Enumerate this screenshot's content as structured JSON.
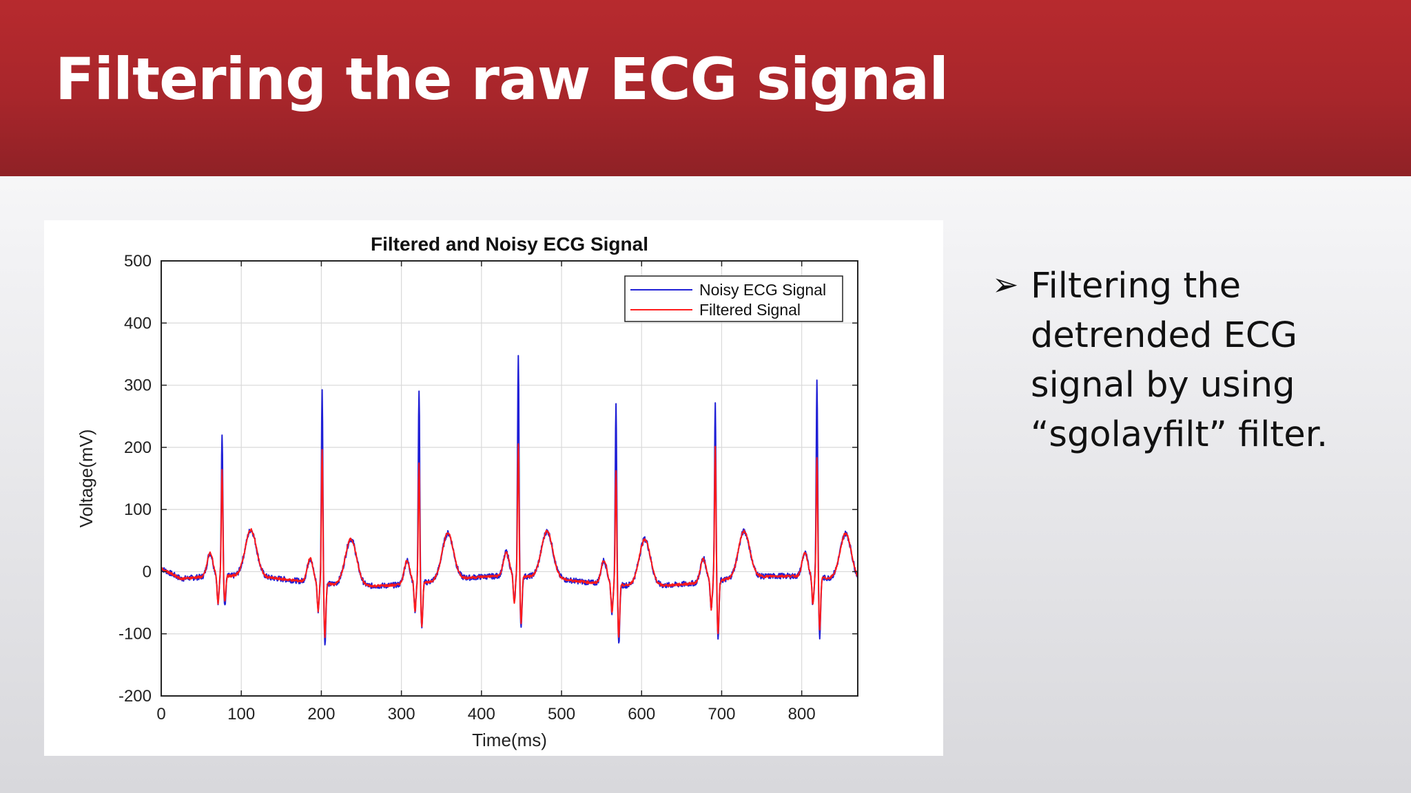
{
  "slide": {
    "title": "Filtering the raw ECG signal",
    "bullet_marker": "➢",
    "bullet_text": "Filtering the detrended ECG signal by using “sgolayfilt” filter."
  },
  "colors": {
    "title_bar": "#b0282d",
    "noisy": "#1f1fd6",
    "filtered": "#ff1a1a"
  },
  "chart_data": {
    "type": "line",
    "title": "Filtered and Noisy ECG Signal",
    "xlabel": "Time(ms)",
    "ylabel": "Voltage(mV)",
    "xlim": [
      0,
      870
    ],
    "ylim": [
      -200,
      500
    ],
    "xticks": [
      0,
      100,
      200,
      300,
      400,
      500,
      600,
      700,
      800
    ],
    "yticks": [
      -200,
      -100,
      0,
      100,
      200,
      300,
      400,
      500
    ],
    "grid": true,
    "legend_position": "top-right",
    "beats": [
      {
        "r_time": 76,
        "noisy_peak": 215,
        "filtered_peak": 155,
        "noisy_min": -65,
        "filtered_min": -55
      },
      {
        "r_time": 201,
        "noisy_peak": 295,
        "filtered_peak": 200,
        "noisy_min": -112,
        "filtered_min": -100
      },
      {
        "r_time": 322,
        "noisy_peak": 295,
        "filtered_peak": 178,
        "noisy_min": -90,
        "filtered_min": -85
      },
      {
        "r_time": 446,
        "noisy_peak": 337,
        "filtered_peak": 200,
        "noisy_min": -100,
        "filtered_min": -92
      },
      {
        "r_time": 568,
        "noisy_peak": 280,
        "filtered_peak": 168,
        "noisy_min": -110,
        "filtered_min": -100
      },
      {
        "r_time": 692,
        "noisy_peak": 268,
        "filtered_peak": 200,
        "noisy_min": -108,
        "filtered_min": -100
      },
      {
        "r_time": 819,
        "noisy_peak": 302,
        "filtered_peak": 180,
        "noisy_min": -110,
        "filtered_min": -100
      }
    ],
    "t_wave_peak": 60,
    "baseline": -15,
    "series": [
      {
        "name": "Noisy ECG Signal",
        "color": "#1f1fd6"
      },
      {
        "name": "Filtered Signal",
        "color": "#ff1a1a"
      }
    ]
  }
}
